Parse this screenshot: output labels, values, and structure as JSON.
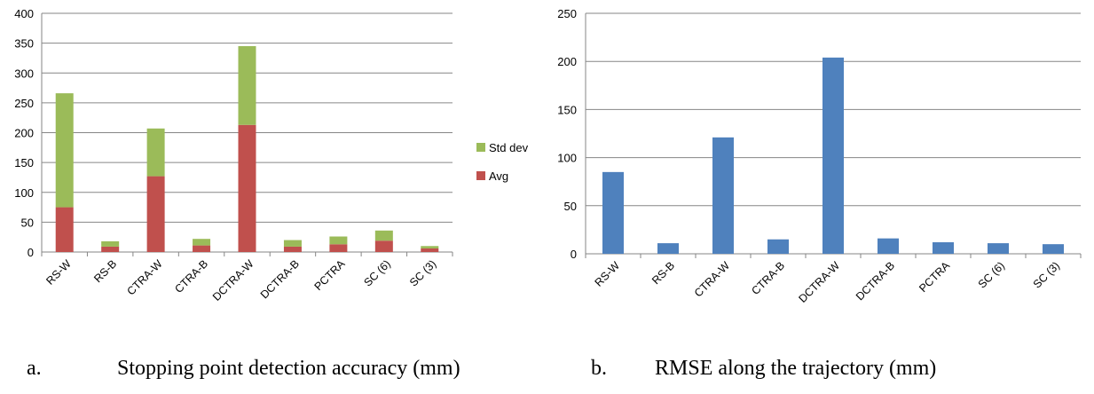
{
  "chart_data": [
    {
      "type": "bar",
      "stacked": true,
      "caption_label": "a.",
      "caption": "Stopping point detection accuracy (mm)",
      "categories": [
        "RS-W",
        "RS-B",
        "CTRA-W",
        "CTRA-B",
        "DCTRA-W",
        "DCTRA-B",
        "PCTRA",
        "SC (6)",
        "SC (3)"
      ],
      "series": [
        {
          "name": "Avg",
          "color": "#c0504d",
          "values": [
            75,
            9,
            127,
            11,
            213,
            9,
            13,
            19,
            6
          ]
        },
        {
          "name": "Std dev",
          "color": "#9bbb59",
          "values": [
            191,
            9,
            80,
            11,
            132,
            11,
            13,
            17,
            4
          ]
        }
      ],
      "legend_order": [
        "Std dev",
        "Avg"
      ],
      "legend_position": "right",
      "ylim": [
        0,
        400
      ],
      "yticks": [
        0,
        50,
        100,
        150,
        200,
        250,
        300,
        350,
        400
      ],
      "grid": true
    },
    {
      "type": "bar",
      "caption_label": "b.",
      "caption": "RMSE along the trajectory (mm)",
      "categories": [
        "RS-W",
        "RS-B",
        "CTRA-W",
        "CTRA-B",
        "DCTRA-W",
        "DCTRA-B",
        "PCTRA",
        "SC (6)",
        "SC (3)"
      ],
      "series": [
        {
          "color": "#4f81bd",
          "values": [
            85,
            11,
            121,
            15,
            204,
            16,
            12,
            11,
            10
          ]
        }
      ],
      "ylim": [
        0,
        250
      ],
      "yticks": [
        0,
        50,
        100,
        150,
        200,
        250
      ],
      "grid": true
    }
  ]
}
